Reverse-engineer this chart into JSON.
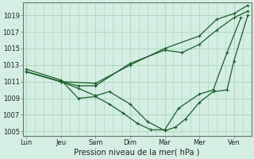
{
  "background_color": "#d4eee4",
  "grid_color": "#b0d8c0",
  "line_color": "#1a5c28",
  "xlabel": "Pression niveau de la mer( hPa )",
  "ylim": [
    1004.5,
    1020.5
  ],
  "yticks": [
    1005,
    1007,
    1009,
    1011,
    1013,
    1015,
    1017,
    1019
  ],
  "xtick_labels": [
    "Lun",
    "Jeu",
    "Sam",
    "Dim",
    "Mar",
    "Mer",
    "Ven"
  ],
  "xtick_positions": [
    0,
    1,
    2,
    3,
    4,
    5,
    6
  ],
  "xlim": [
    -0.1,
    6.5
  ],
  "lines": [
    {
      "x": [
        0,
        1,
        2,
        3,
        4,
        5,
        5.5,
        6,
        6.4
      ],
      "y": [
        1012.2,
        1011.0,
        1010.8,
        1013.0,
        1015.0,
        1016.5,
        1018.5,
        1019.2,
        1020.2
      ],
      "marker": "+"
    },
    {
      "x": [
        0,
        1,
        1.5,
        2,
        3,
        4,
        4.5,
        5,
        5.5,
        6,
        6.4
      ],
      "y": [
        1012.2,
        1011.0,
        1010.5,
        1010.5,
        1013.2,
        1014.8,
        1014.5,
        1015.5,
        1017.2,
        1018.7,
        1019.5
      ],
      "marker": "+"
    },
    {
      "x": [
        0,
        1,
        1.5,
        2,
        2.4,
        3,
        3.5,
        4,
        4.3,
        4.6,
        5,
        5.4,
        5.8,
        6,
        6.4
      ],
      "y": [
        1012.2,
        1011.0,
        1010.2,
        1009.3,
        1009.8,
        1008.3,
        1006.2,
        1005.1,
        1005.5,
        1006.5,
        1008.5,
        1009.8,
        1010.0,
        1013.5,
        1019.0
      ],
      "marker": "+"
    },
    {
      "x": [
        0,
        1,
        1.5,
        2,
        2.4,
        2.8,
        3.2,
        3.6,
        4,
        4.4,
        5,
        5.4,
        5.8,
        6.2
      ],
      "y": [
        1012.5,
        1011.2,
        1009.0,
        1009.2,
        1008.3,
        1007.2,
        1006.0,
        1005.2,
        1005.2,
        1007.8,
        1009.5,
        1010.0,
        1014.5,
        1018.7
      ],
      "marker": "+"
    }
  ]
}
